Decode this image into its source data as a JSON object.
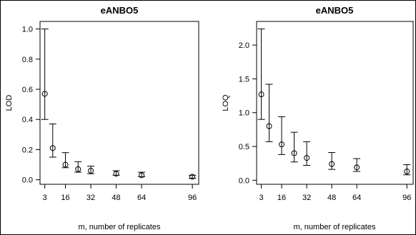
{
  "chart_data": [
    {
      "type": "scatter",
      "title": "eANBO5",
      "xlabel": "m, number of replicates",
      "ylabel": "LOD",
      "x_ticks": [
        3,
        16,
        32,
        48,
        64,
        96
      ],
      "y_ticks": [
        "0.0",
        "0.2",
        "0.4",
        "0.6",
        "0.8",
        "1.0"
      ],
      "xlim": [
        0,
        100
      ],
      "ylim": [
        -0.03,
        1.05
      ],
      "grid": false,
      "series": [
        {
          "x": [
            3,
            8,
            16,
            24,
            32,
            48,
            64,
            96
          ],
          "y": [
            0.57,
            0.21,
            0.1,
            0.07,
            0.06,
            0.04,
            0.03,
            0.02
          ],
          "lower": [
            0.4,
            0.15,
            0.08,
            0.05,
            0.04,
            0.03,
            0.02,
            0.01
          ],
          "upper": [
            1.0,
            0.37,
            0.18,
            0.12,
            0.09,
            0.06,
            0.05,
            0.03
          ]
        }
      ]
    },
    {
      "type": "scatter",
      "title": "eANBO5",
      "xlabel": "m, number of replicates",
      "ylabel": "LOQ",
      "x_ticks": [
        3,
        16,
        32,
        48,
        64,
        96
      ],
      "y_ticks": [
        "0.0",
        "0.5",
        "1.0",
        "1.5",
        "2.0"
      ],
      "xlim": [
        0,
        100
      ],
      "ylim": [
        -0.06,
        2.35
      ],
      "grid": false,
      "series": [
        {
          "x": [
            3,
            8,
            16,
            24,
            32,
            48,
            64,
            96
          ],
          "y": [
            1.27,
            0.8,
            0.53,
            0.4,
            0.33,
            0.24,
            0.19,
            0.13
          ],
          "lower": [
            0.9,
            0.57,
            0.38,
            0.27,
            0.22,
            0.16,
            0.13,
            0.08
          ],
          "upper": [
            2.24,
            1.42,
            0.94,
            0.71,
            0.57,
            0.41,
            0.32,
            0.23
          ]
        }
      ]
    }
  ]
}
